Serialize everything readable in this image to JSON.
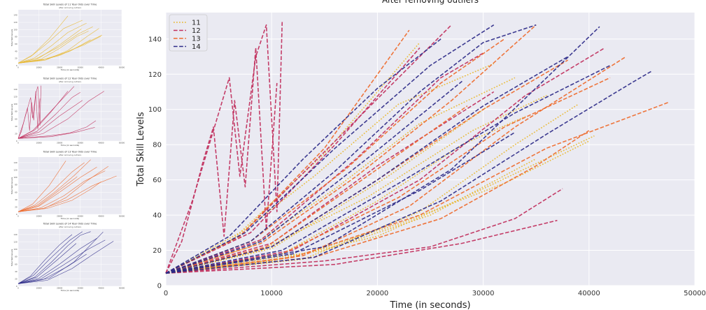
{
  "main_chart": {
    "title": "After removing outliers",
    "xlabel": "Time (in seconds)",
    "ylabel": "Total Skill Levels",
    "legend_position": "top-left"
  },
  "small_charts": [
    {
      "title": "Total Skill Levels of 11 Year Olds over Time",
      "subtitle": "after removing outliers",
      "xlabel": "Time (in seconds)",
      "ylabel": "Total Skill Levels"
    },
    {
      "title": "Total Skill Levels of 12 Year Olds over Time",
      "subtitle": "after removing outliers",
      "xlabel": "Time (in seconds)",
      "ylabel": "Total Skill Levels"
    },
    {
      "title": "Total Skill Levels of 13 Year Olds over Time",
      "subtitle": "after removing outliers",
      "xlabel": "Time (in seconds)",
      "ylabel": "Total Skill Levels"
    },
    {
      "title": "Total Skill Levels of 14 Year Olds over Time",
      "subtitle": "after removing outliers",
      "xlabel": "Time (in seconds)",
      "ylabel": "Total Skill Levels"
    }
  ],
  "colors": {
    "11": "#e8b830",
    "12": "#c02e5c",
    "13": "#ee6a2c",
    "14": "#2c2a88"
  },
  "chart_data": {
    "type": "line",
    "title": "After removing outliers",
    "xlabel": "Time (in seconds)",
    "ylabel": "Total Skill Levels",
    "xlim": [
      0,
      50000
    ],
    "ylim": [
      0,
      155
    ],
    "xticks": [
      0,
      10000,
      20000,
      30000,
      40000,
      50000
    ],
    "yticks": [
      0,
      20,
      40,
      60,
      80,
      100,
      120,
      140
    ],
    "grid": true,
    "legend": "top-left",
    "series": [
      {
        "name": "11",
        "color": "#e8b830",
        "style": "dotted",
        "lines": [
          {
            "x": [
              0,
              10000,
              20000,
              30000,
              40500
            ],
            "y": [
              7,
              14,
              28,
              55,
              85
            ]
          },
          {
            "x": [
              0,
              8000,
              16000,
              24000,
              33000
            ],
            "y": [
              7,
              22,
              55,
              92,
              118
            ]
          },
          {
            "x": [
              0,
              12000,
              22000,
              32000,
              40000
            ],
            "y": [
              7,
              16,
              35,
              58,
              82
            ]
          },
          {
            "x": [
              0,
              6000,
              14000,
              22000,
              31000
            ],
            "y": [
              7,
              25,
              62,
              103,
              126
            ]
          },
          {
            "x": [
              0,
              15000,
              25000,
              35000
            ],
            "y": [
              7,
              20,
              40,
              72
            ]
          },
          {
            "x": [
              0,
              9000,
              19000,
              29000,
              36000
            ],
            "y": [
              7,
              20,
              50,
              88,
              108
            ]
          },
          {
            "x": [
              0,
              7000,
              15000,
              24000
            ],
            "y": [
              7,
              30,
              75,
              138
            ]
          },
          {
            "x": [
              0,
              11000,
              20000,
              28000,
              34000
            ],
            "y": [
              7,
              18,
              48,
              80,
              96
            ]
          },
          {
            "x": [
              0,
              13000,
              24000,
              33000,
              39000
            ],
            "y": [
              7,
              15,
              42,
              80,
              103
            ]
          },
          {
            "x": [
              0,
              10000,
              21000,
              30500
            ],
            "y": [
              7,
              21,
              62,
              102
            ]
          }
        ]
      },
      {
        "name": "12",
        "color": "#c02e5c",
        "style": "dashed",
        "lines": [
          {
            "x": [
              0,
              2500,
              4500,
              6000,
              7000,
              8500,
              9500,
              10500,
              11000
            ],
            "y": [
              7,
              48,
              88,
              118,
              62,
              130,
              148,
              42,
              150
            ]
          },
          {
            "x": [
              0,
              1500,
              2500,
              3500,
              4500,
              5500,
              6500,
              7500,
              8500,
              9500,
              10500
            ],
            "y": [
              7,
              25,
              47,
              70,
              90,
              28,
              105,
              56,
              135,
              32,
              115
            ]
          },
          {
            "x": [
              0,
              15000,
              25000,
              33000,
              37500
            ],
            "y": [
              7,
              14,
              22,
              38,
              55
            ]
          },
          {
            "x": [
              0,
              8000,
              16000,
              24000
            ],
            "y": [
              7,
              30,
              80,
              135
            ]
          },
          {
            "x": [
              0,
              10000,
              20000,
              31000
            ],
            "y": [
              7,
              24,
              68,
              110
            ]
          },
          {
            "x": [
              0,
              12000,
              24000,
              34000,
              41500
            ],
            "y": [
              7,
              20,
              60,
              108,
              135
            ]
          },
          {
            "x": [
              0,
              7000,
              14000,
              22000,
              27000
            ],
            "y": [
              7,
              28,
              70,
              118,
              148
            ]
          },
          {
            "x": [
              0,
              16000,
              28000,
              37000
            ],
            "y": [
              7,
              12,
              24,
              37
            ]
          },
          {
            "x": [
              0,
              9000,
              18000,
              26000,
              30000
            ],
            "y": [
              7,
              26,
              72,
              118,
              132
            ]
          }
        ]
      },
      {
        "name": "13",
        "color": "#ee6a2c",
        "style": "dashed",
        "lines": [
          {
            "x": [
              0,
              12000,
              24000,
              36000,
              47500
            ],
            "y": [
              7,
              16,
              40,
              78,
              104
            ]
          },
          {
            "x": [
              0,
              9000,
              18000,
              27000,
              35000
            ],
            "y": [
              7,
              24,
              62,
              105,
              148
            ]
          },
          {
            "x": [
              0,
              14000,
              26000,
              35000,
              40000
            ],
            "y": [
              7,
              16,
              38,
              68,
              88
            ]
          },
          {
            "x": [
              0,
              7000,
              15000,
              23000
            ],
            "y": [
              7,
              28,
              78,
              145
            ]
          },
          {
            "x": [
              0,
              10000,
              20000,
              30000,
              38000
            ],
            "y": [
              7,
              22,
              60,
              100,
              128
            ]
          },
          {
            "x": [
              0,
              8000,
              17000,
              26000,
              32000
            ],
            "y": [
              7,
              25,
              66,
              115,
              140
            ]
          },
          {
            "x": [
              0,
              11000,
              22000,
              32000,
              42000
            ],
            "y": [
              7,
              18,
              50,
              90,
              118
            ]
          },
          {
            "x": [
              0,
              13000,
              23000,
              33000,
              43500
            ],
            "y": [
              7,
              17,
              45,
              90,
              130
            ]
          },
          {
            "x": [
              0,
              9500,
              19500,
              28500
            ],
            "y": [
              7,
              22,
              64,
              102
            ]
          }
        ]
      },
      {
        "name": "14",
        "color": "#2c2a88",
        "style": "dashed",
        "lines": [
          {
            "x": [
              0,
              14000,
              26000,
              36000,
              44000,
              46000
            ],
            "y": [
              7,
              16,
              48,
              86,
              115,
              122
            ]
          },
          {
            "x": [
              0,
              8000,
              16000,
              24000,
              30000,
              35000
            ],
            "y": [
              7,
              25,
              65,
              110,
              138,
              148
            ]
          },
          {
            "x": [
              0,
              10000,
              20000,
              30000,
              38000
            ],
            "y": [
              7,
              22,
              60,
              102,
              130
            ]
          },
          {
            "x": [
              0,
              6000,
              13000,
              20000,
              26000
            ],
            "y": [
              7,
              28,
              72,
              112,
              140
            ]
          },
          {
            "x": [
              0,
              9000,
              19000,
              28000
            ],
            "y": [
              7,
              25,
              72,
              116
            ]
          },
          {
            "x": [
              0,
              12000,
              24000,
              33000
            ],
            "y": [
              7,
              18,
              54,
              87
            ]
          },
          {
            "x": [
              0,
              11000,
              22000,
              33000,
              42000
            ],
            "y": [
              7,
              20,
              58,
              98,
              125
            ]
          },
          {
            "x": [
              0,
              7500,
              16000,
              25000,
              31000
            ],
            "y": [
              7,
              30,
              78,
              125,
              148
            ]
          },
          {
            "x": [
              0,
              15000,
              27000,
              36000,
              41000
            ],
            "y": [
              7,
              22,
              66,
              118,
              147
            ]
          }
        ]
      }
    ]
  }
}
